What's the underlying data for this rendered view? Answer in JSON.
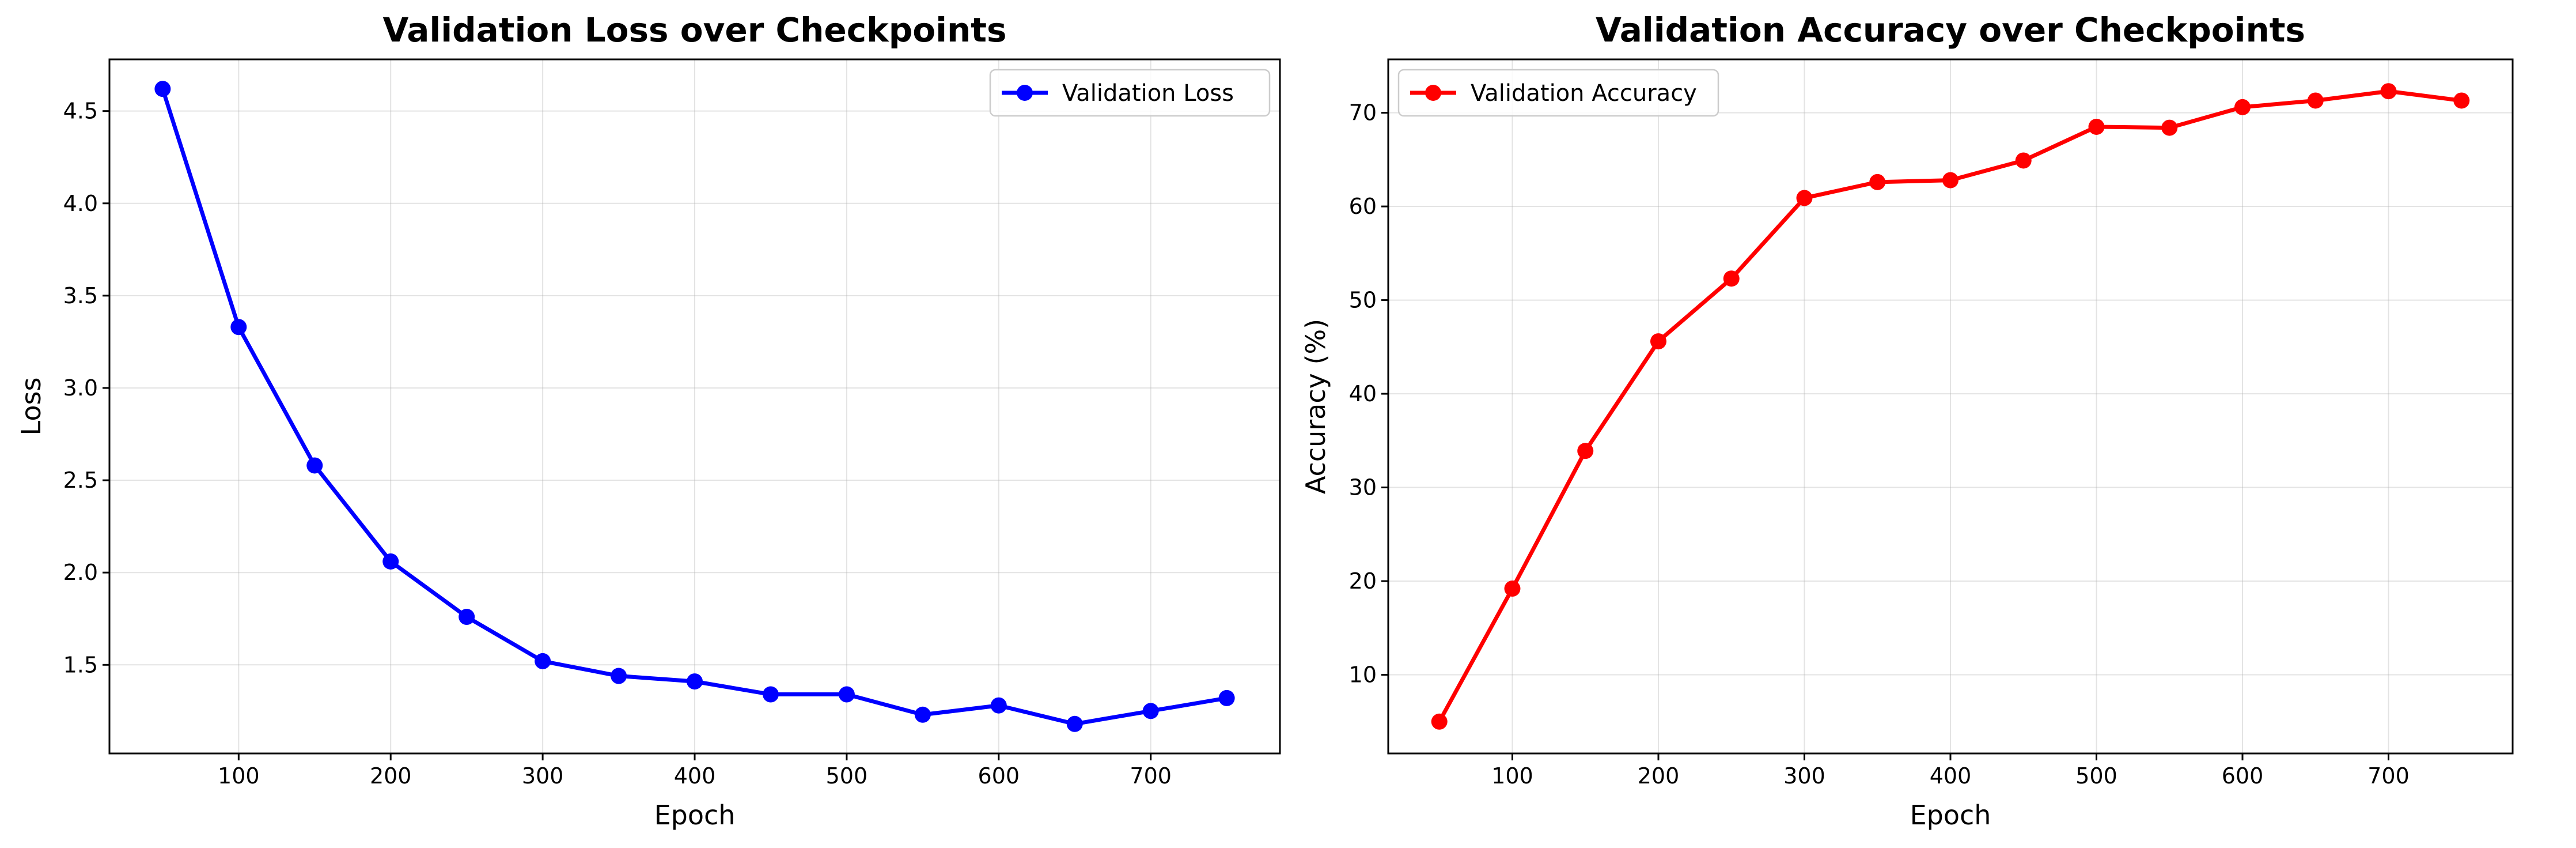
{
  "chart_data": [
    {
      "type": "line",
      "title": "Validation Loss over Checkpoints",
      "xlabel": "Epoch",
      "ylabel": "Loss",
      "x": [
        50,
        100,
        150,
        200,
        250,
        300,
        350,
        400,
        450,
        500,
        550,
        600,
        650,
        700,
        750
      ],
      "series": [
        {
          "name": "Validation Loss",
          "color": "#0000ff",
          "marker": "circle",
          "values": [
            4.62,
            3.33,
            2.58,
            2.06,
            1.76,
            1.52,
            1.44,
            1.41,
            1.34,
            1.34,
            1.23,
            1.28,
            1.18,
            1.25,
            1.32
          ]
        }
      ],
      "xlim": [
        15,
        785
      ],
      "ylim": [
        1.02,
        4.78
      ],
      "xticks": [
        100,
        200,
        300,
        400,
        500,
        600,
        700
      ],
      "yticks": [
        1.5,
        2.0,
        2.5,
        3.0,
        3.5,
        4.0,
        4.5
      ],
      "ytick_labels": [
        "1.5",
        "2.0",
        "2.5",
        "3.0",
        "3.5",
        "4.0",
        "4.5"
      ],
      "grid": true,
      "legend_position": "top-right"
    },
    {
      "type": "line",
      "title": "Validation Accuracy over Checkpoints",
      "xlabel": "Epoch",
      "ylabel": "Accuracy (%)",
      "x": [
        50,
        100,
        150,
        200,
        250,
        300,
        350,
        400,
        450,
        500,
        550,
        600,
        650,
        700,
        750
      ],
      "series": [
        {
          "name": "Validation Accuracy",
          "color": "#ff0000",
          "marker": "circle",
          "values": [
            5.0,
            19.2,
            33.9,
            45.6,
            52.3,
            60.9,
            62.6,
            62.8,
            64.9,
            68.5,
            68.4,
            70.6,
            71.3,
            72.3,
            71.3
          ]
        }
      ],
      "xlim": [
        15,
        785
      ],
      "ylim": [
        1.6,
        75.7
      ],
      "xticks": [
        100,
        200,
        300,
        400,
        500,
        600,
        700
      ],
      "yticks": [
        10,
        20,
        30,
        40,
        50,
        60,
        70
      ],
      "ytick_labels": [
        "10",
        "20",
        "30",
        "40",
        "50",
        "60",
        "70"
      ],
      "grid": true,
      "legend_position": "top-left"
    }
  ]
}
